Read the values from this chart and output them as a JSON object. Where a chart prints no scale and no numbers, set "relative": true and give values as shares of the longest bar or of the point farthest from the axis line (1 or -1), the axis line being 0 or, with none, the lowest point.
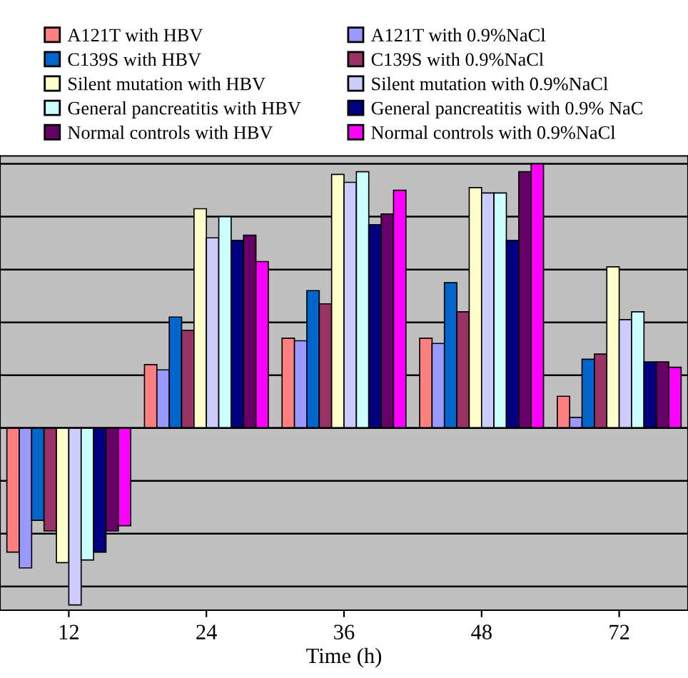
{
  "chart_data": {
    "type": "bar",
    "relative": true,
    "xlabel": "Time (h)",
    "categories": [
      "12",
      "24",
      "36",
      "48",
      "72"
    ],
    "legend": "top",
    "grid": "y",
    "series": [
      {
        "name": "A121T with HBV",
        "color": "#ff8080",
        "values": [
          -0.47,
          0.24,
          0.34,
          0.34,
          0.12
        ]
      },
      {
        "name": "A121T with 0.9%NaCl",
        "color": "#9999ff",
        "values": [
          -0.53,
          0.22,
          0.33,
          0.32,
          0.04
        ]
      },
      {
        "name": "C139S with HBV",
        "color": "#0066cc",
        "values": [
          -0.35,
          0.42,
          0.52,
          0.55,
          0.26
        ]
      },
      {
        "name": "C139S with 0.9%NaCl",
        "color": "#993366",
        "values": [
          -0.39,
          0.37,
          0.47,
          0.44,
          0.28
        ]
      },
      {
        "name": "Silent mutation with HBV",
        "color": "#ffffcc",
        "values": [
          -0.51,
          0.83,
          0.96,
          0.91,
          0.61
        ]
      },
      {
        "name": "Silent mutation with 0.9%NaCl",
        "color": "#ccccff",
        "values": [
          -0.67,
          0.72,
          0.93,
          0.89,
          0.41
        ]
      },
      {
        "name": "General pancreatitis with HBV",
        "color": "#ccffff",
        "values": [
          -0.5,
          0.8,
          0.97,
          0.89,
          0.44
        ]
      },
      {
        "name": "General pancreatitis with 0.9% NaC",
        "color": "#000080",
        "values": [
          -0.47,
          0.71,
          0.77,
          0.71,
          0.25
        ]
      },
      {
        "name": "Normal controls with HBV",
        "color": "#660066",
        "values": [
          -0.39,
          0.73,
          0.81,
          0.97,
          0.25
        ]
      },
      {
        "name": "Normal controls with 0.9%NaCl",
        "color": "#ff00ff",
        "values": [
          -0.37,
          0.63,
          0.9,
          1,
          0.23
        ]
      }
    ]
  }
}
